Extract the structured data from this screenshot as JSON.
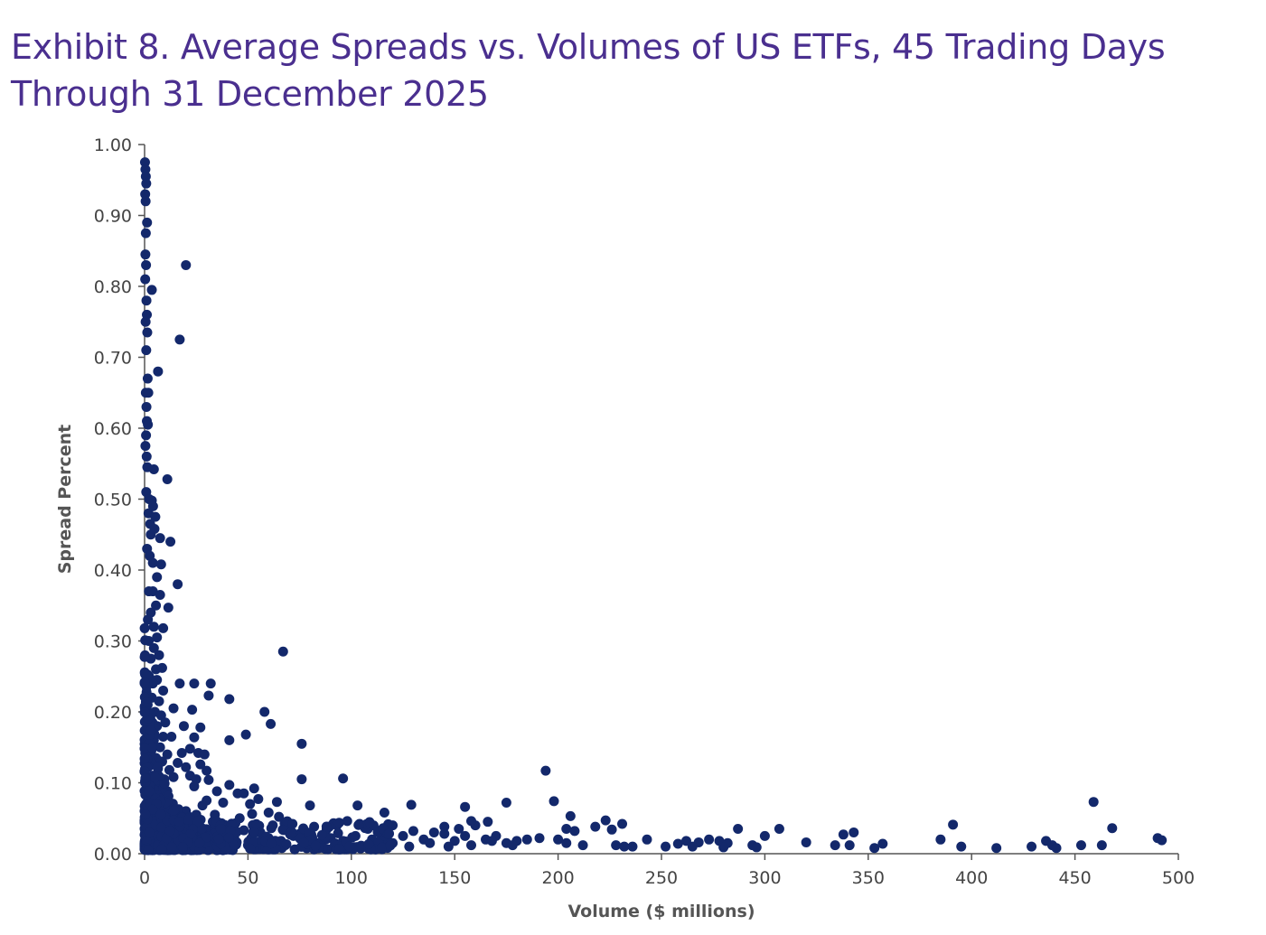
{
  "chart_data": {
    "type": "scatter",
    "title": "Exhibit 8. Average Spreads vs. Volumes of US ETFs, 45 Trading Days Through 31 December 2025",
    "xlabel": "Volume ($ millions)",
    "ylabel": "Spread Percent",
    "xlim": [
      0,
      500
    ],
    "ylim": [
      0,
      1
    ],
    "x_ticks": [
      "0",
      "50",
      "100",
      "150",
      "200",
      "250",
      "300",
      "350",
      "400",
      "450",
      "500"
    ],
    "y_ticks": [
      "0.00",
      "0.10",
      "0.20",
      "0.30",
      "0.40",
      "0.50",
      "0.60",
      "0.70",
      "0.80",
      "0.90",
      "1.00"
    ],
    "grid": false,
    "legend": "none",
    "marker_color": "#13286b",
    "points": [
      [
        0.2,
        0.975
      ],
      [
        0.4,
        0.965
      ],
      [
        0.6,
        0.955
      ],
      [
        0.8,
        0.945
      ],
      [
        0.3,
        0.93
      ],
      [
        0.5,
        0.92
      ],
      [
        1.2,
        0.89
      ],
      [
        0.6,
        0.875
      ],
      [
        0.4,
        0.845
      ],
      [
        0.7,
        0.83
      ],
      [
        0.3,
        0.81
      ],
      [
        3.5,
        0.795
      ],
      [
        0.9,
        0.78
      ],
      [
        1.1,
        0.76
      ],
      [
        0.5,
        0.75
      ],
      [
        1.3,
        0.735
      ],
      [
        0.8,
        0.71
      ],
      [
        20,
        0.83
      ],
      [
        17,
        0.725
      ],
      [
        6.5,
        0.68
      ],
      [
        1.5,
        0.67
      ],
      [
        0.6,
        0.65
      ],
      [
        1.8,
        0.65
      ],
      [
        0.9,
        0.63
      ],
      [
        1.1,
        0.61
      ],
      [
        1.6,
        0.605
      ],
      [
        0.7,
        0.59
      ],
      [
        0.4,
        0.575
      ],
      [
        1.0,
        0.56
      ],
      [
        1.3,
        0.545
      ],
      [
        4.5,
        0.542
      ],
      [
        11,
        0.528
      ],
      [
        0.8,
        0.51
      ],
      [
        2.2,
        0.5
      ],
      [
        3.5,
        0.498
      ],
      [
        4.1,
        0.49
      ],
      [
        1.9,
        0.48
      ],
      [
        5.2,
        0.475
      ],
      [
        2.7,
        0.465
      ],
      [
        4.8,
        0.458
      ],
      [
        3.0,
        0.45
      ],
      [
        7.5,
        0.445
      ],
      [
        12.5,
        0.44
      ],
      [
        1.2,
        0.43
      ],
      [
        2.5,
        0.42
      ],
      [
        4.0,
        0.41
      ],
      [
        8.0,
        0.408
      ],
      [
        6.0,
        0.39
      ],
      [
        16,
        0.38
      ],
      [
        2.1,
        0.37
      ],
      [
        4.0,
        0.37
      ],
      [
        7.5,
        0.365
      ],
      [
        5.5,
        0.35
      ],
      [
        11.5,
        0.347
      ],
      [
        3.0,
        0.34
      ],
      [
        1.6,
        0.33
      ],
      [
        4.5,
        0.32
      ],
      [
        9.0,
        0.318
      ],
      [
        6.0,
        0.305
      ],
      [
        2.0,
        0.3
      ],
      [
        4.5,
        0.29
      ],
      [
        7.0,
        0.28
      ],
      [
        3.0,
        0.275
      ],
      [
        5.5,
        0.26
      ],
      [
        8.5,
        0.262
      ],
      [
        2.2,
        0.25
      ],
      [
        6.0,
        0.245
      ],
      [
        4.0,
        0.24
      ],
      [
        9.0,
        0.23
      ],
      [
        3.5,
        0.22
      ],
      [
        7.0,
        0.215
      ],
      [
        1.5,
        0.21
      ],
      [
        5.0,
        0.2
      ],
      [
        8.0,
        0.195
      ],
      [
        2.8,
        0.19
      ],
      [
        10,
        0.185
      ],
      [
        6.0,
        0.18
      ],
      [
        3.5,
        0.17
      ],
      [
        9.0,
        0.165
      ],
      [
        4.5,
        0.16
      ],
      [
        7.5,
        0.15
      ],
      [
        2.0,
        0.145
      ],
      [
        11,
        0.14
      ],
      [
        5.5,
        0.135
      ],
      [
        8.5,
        0.13
      ],
      [
        3.0,
        0.125
      ],
      [
        6.5,
        0.12
      ],
      [
        12,
        0.118
      ],
      [
        4.0,
        0.11
      ],
      [
        9.5,
        0.105
      ],
      [
        2.5,
        0.1
      ],
      [
        7.0,
        0.095
      ],
      [
        5.0,
        0.09
      ],
      [
        11,
        0.088
      ],
      [
        3.0,
        0.08
      ],
      [
        8.0,
        0.075
      ],
      [
        6.0,
        0.07
      ],
      [
        13,
        0.068
      ],
      [
        4.0,
        0.06
      ],
      [
        10,
        0.055
      ],
      [
        2.0,
        0.05
      ],
      [
        7.5,
        0.045
      ],
      [
        5.0,
        0.04
      ],
      [
        12,
        0.038
      ],
      [
        3.5,
        0.03
      ],
      [
        9.0,
        0.025
      ],
      [
        6.0,
        0.02
      ],
      [
        14,
        0.018
      ],
      [
        4.5,
        0.012
      ],
      [
        8.0,
        0.01
      ],
      [
        11,
        0.008
      ],
      [
        16,
        0.015
      ],
      [
        17,
        0.24
      ],
      [
        24,
        0.24
      ],
      [
        32,
        0.24
      ],
      [
        31,
        0.223
      ],
      [
        41,
        0.218
      ],
      [
        23,
        0.203
      ],
      [
        14,
        0.205
      ],
      [
        19,
        0.18
      ],
      [
        27,
        0.178
      ],
      [
        13,
        0.165
      ],
      [
        24,
        0.164
      ],
      [
        22,
        0.148
      ],
      [
        18,
        0.142
      ],
      [
        26,
        0.142
      ],
      [
        29,
        0.14
      ],
      [
        16,
        0.128
      ],
      [
        20,
        0.122
      ],
      [
        27,
        0.126
      ],
      [
        30,
        0.117
      ],
      [
        14,
        0.108
      ],
      [
        22,
        0.11
      ],
      [
        25,
        0.105
      ],
      [
        31,
        0.104
      ],
      [
        24,
        0.095
      ],
      [
        41,
        0.097
      ],
      [
        45,
        0.085
      ],
      [
        35,
        0.088
      ],
      [
        48,
        0.085
      ],
      [
        53,
        0.092
      ],
      [
        30,
        0.075
      ],
      [
        38,
        0.072
      ],
      [
        51,
        0.07
      ],
      [
        28,
        0.068
      ],
      [
        55,
        0.077
      ],
      [
        64,
        0.073
      ],
      [
        34,
        0.055
      ],
      [
        46,
        0.05
      ],
      [
        52,
        0.056
      ],
      [
        60,
        0.058
      ],
      [
        65,
        0.052
      ],
      [
        20,
        0.06
      ],
      [
        25,
        0.055
      ],
      [
        33,
        0.045
      ],
      [
        39,
        0.04
      ],
      [
        43,
        0.036
      ],
      [
        48,
        0.033
      ],
      [
        56,
        0.03
      ],
      [
        62,
        0.04
      ],
      [
        70,
        0.032
      ],
      [
        75,
        0.028
      ],
      [
        82,
        0.038
      ],
      [
        88,
        0.034
      ],
      [
        93,
        0.04
      ],
      [
        98,
        0.046
      ],
      [
        104,
        0.042
      ],
      [
        108,
        0.035
      ],
      [
        60,
        0.022
      ],
      [
        66,
        0.018
      ],
      [
        72,
        0.025
      ],
      [
        78,
        0.02
      ],
      [
        84,
        0.015
      ],
      [
        90,
        0.022
      ],
      [
        96,
        0.018
      ],
      [
        102,
        0.025
      ],
      [
        110,
        0.02
      ],
      [
        116,
        0.03
      ],
      [
        120,
        0.04
      ],
      [
        125,
        0.025
      ],
      [
        130,
        0.032
      ],
      [
        135,
        0.02
      ],
      [
        140,
        0.03
      ],
      [
        145,
        0.028
      ],
      [
        150,
        0.018
      ],
      [
        155,
        0.025
      ],
      [
        160,
        0.04
      ],
      [
        165,
        0.02
      ],
      [
        170,
        0.025
      ],
      [
        175,
        0.015
      ],
      [
        180,
        0.018
      ],
      [
        185,
        0.02
      ],
      [
        120,
        0.015
      ],
      [
        128,
        0.01
      ],
      [
        138,
        0.015
      ],
      [
        147,
        0.01
      ],
      [
        158,
        0.012
      ],
      [
        168,
        0.018
      ],
      [
        178,
        0.012
      ],
      [
        22,
        0.01
      ],
      [
        28,
        0.012
      ],
      [
        35,
        0.01
      ],
      [
        42,
        0.014
      ],
      [
        50,
        0.012
      ],
      [
        58,
        0.01
      ],
      [
        68,
        0.012
      ],
      [
        80,
        0.01
      ],
      [
        92,
        0.012
      ],
      [
        105,
        0.01
      ],
      [
        112,
        0.012
      ],
      [
        49,
        0.168
      ],
      [
        58,
        0.2
      ],
      [
        61,
        0.183
      ],
      [
        41,
        0.16
      ],
      [
        67,
        0.285
      ],
      [
        76,
        0.155
      ],
      [
        76,
        0.105
      ],
      [
        96,
        0.106
      ],
      [
        80,
        0.068
      ],
      [
        103,
        0.068
      ],
      [
        116,
        0.058
      ],
      [
        129,
        0.069
      ],
      [
        155,
        0.066
      ],
      [
        175,
        0.072
      ],
      [
        158,
        0.046
      ],
      [
        166,
        0.045
      ],
      [
        145,
        0.038
      ],
      [
        152,
        0.035
      ],
      [
        194,
        0.117
      ],
      [
        198,
        0.074
      ],
      [
        206,
        0.053
      ],
      [
        218,
        0.038
      ],
      [
        223,
        0.047
      ],
      [
        231,
        0.042
      ],
      [
        226,
        0.034
      ],
      [
        204,
        0.035
      ],
      [
        208,
        0.032
      ],
      [
        200,
        0.02
      ],
      [
        191,
        0.022
      ],
      [
        204,
        0.015
      ],
      [
        212,
        0.012
      ],
      [
        228,
        0.012
      ],
      [
        236,
        0.01
      ],
      [
        243,
        0.02
      ],
      [
        252,
        0.01
      ],
      [
        258,
        0.014
      ],
      [
        262,
        0.018
      ],
      [
        268,
        0.016
      ],
      [
        273,
        0.02
      ],
      [
        278,
        0.018
      ],
      [
        282,
        0.015
      ],
      [
        287,
        0.035
      ],
      [
        294,
        0.012
      ],
      [
        300,
        0.025
      ],
      [
        307,
        0.035
      ],
      [
        320,
        0.016
      ],
      [
        334,
        0.012
      ],
      [
        338,
        0.027
      ],
      [
        341,
        0.012
      ],
      [
        343,
        0.03
      ],
      [
        353,
        0.008
      ],
      [
        357,
        0.014
      ],
      [
        385,
        0.02
      ],
      [
        391,
        0.041
      ],
      [
        395,
        0.01
      ],
      [
        412,
        0.008
      ],
      [
        429,
        0.01
      ],
      [
        436,
        0.018
      ],
      [
        439,
        0.012
      ],
      [
        441,
        0.008
      ],
      [
        453,
        0.012
      ],
      [
        459,
        0.073
      ],
      [
        463,
        0.012
      ],
      [
        468,
        0.036
      ],
      [
        490,
        0.022
      ],
      [
        492,
        0.019
      ],
      [
        232,
        0.01
      ],
      [
        265,
        0.01
      ],
      [
        280,
        0.009
      ],
      [
        296,
        0.009
      ]
    ]
  }
}
